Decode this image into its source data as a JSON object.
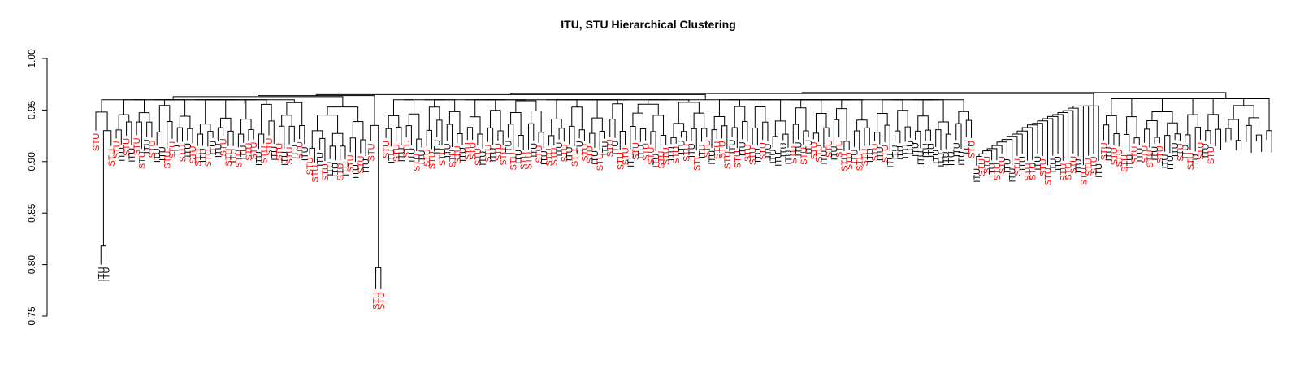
{
  "chart_data": {
    "type": "dendrogram",
    "title": "ITU, STU Hierarchical Clustering",
    "xlabel": "",
    "ylabel": "",
    "ylim": [
      0.75,
      1.0
    ],
    "yticks": [
      0.75,
      0.8,
      0.85,
      0.9,
      0.95,
      1.0
    ],
    "ytick_labels": [
      "0.75",
      "0.80",
      "0.85",
      "0.90",
      "0.95",
      "1.00"
    ],
    "grid": false,
    "legend": "none",
    "label_colors": {
      "ITU": "#000000",
      "STU": "#ff0000"
    },
    "leaves": [
      "STU",
      "ITU",
      "ITU",
      "STU",
      "STU",
      "ITU",
      "STU",
      "ITU",
      "STU",
      "STU",
      "ITU",
      "STU",
      "ITU",
      "ITU",
      "STU",
      "STU",
      "ITU",
      "STU",
      "ITU",
      "STU",
      "STU",
      "ITU",
      "STU",
      "ITU",
      "ITU",
      "STU",
      "STU",
      "ITU",
      "STU",
      "ITU",
      "STU",
      "STU",
      "ITU",
      "STU",
      "STU",
      "ITU",
      "STU",
      "ITU",
      "STU",
      "ITU",
      "STU",
      "ITU",
      "STU",
      "STU",
      "ITU",
      "STU",
      "ITU",
      "ITU",
      "STU",
      "ITU",
      "STU",
      "ITU",
      "STU",
      "ITU",
      "STU",
      "STU",
      "STU",
      "STU",
      "ITU",
      "STU",
      "ITU",
      "STU",
      "ITU",
      "STU",
      "ITU",
      "STU",
      "STU",
      "ITU",
      "STU",
      "ITU",
      "STU",
      "STU",
      "ITU",
      "STU",
      "STU",
      "STU",
      "ITU",
      "STU",
      "ITU",
      "STU",
      "STU",
      "ITU",
      "STU",
      "ITU",
      "STU",
      "STU",
      "ITU",
      "STU",
      "ITU",
      "STU",
      "STU",
      "ITU",
      "STU",
      "ITU",
      "STU",
      "ITU",
      "STU",
      "STU",
      "ITU",
      "STU",
      "ITU",
      "STU",
      "ITU",
      "STU",
      "STU",
      "ITU",
      "STU",
      "ITU",
      "STU",
      "STU",
      "ITU",
      "STU",
      "STU",
      "ITU",
      "STU",
      "ITU",
      "STU",
      "ITU",
      "STU",
      "ITU",
      "STU",
      "ITU",
      "STU",
      "STU",
      "STU",
      "ITU",
      "STU",
      "ITU",
      "STU",
      "STU",
      "ITU",
      "STU",
      "ITU",
      "ITU",
      "ITU",
      "ITU",
      "ITU",
      "STU",
      "ITU",
      "STU",
      "ITU",
      "STU",
      "STU",
      "ITU",
      "STU",
      "ITU",
      "STU",
      "STU",
      "STU",
      "ITU",
      "STU",
      "STU",
      "ITU",
      "STU",
      "ITU",
      "STU",
      "ITU",
      "ITU",
      "ITU",
      "ITU",
      "ITU",
      "ITU",
      "ITU",
      "ITU",
      "ITU",
      "ITU",
      "ITU",
      "ITU",
      "ITU",
      "ITU",
      "ITU",
      "ITU",
      "STU",
      "ITU",
      "STU",
      "STU",
      "ITU",
      "STU",
      "STU",
      "ITU",
      "ITU",
      "STU",
      "ITU",
      "STU",
      "STU",
      "ITU",
      "STU",
      "STU",
      "ITU",
      "ITU",
      "STU",
      "STU",
      "STU",
      "ITU",
      "STU",
      "STU",
      "STU",
      "ITU",
      "STU",
      "ITU",
      "STU",
      "STU",
      "STU",
      "ITU",
      "STU",
      "ITU",
      "STU",
      "STU",
      "ITU",
      "STU",
      "ITU",
      "ITU",
      "ITU",
      "STU",
      "ITU",
      "STU",
      "ITU",
      "STU",
      "ITU",
      "STU"
    ]
  }
}
